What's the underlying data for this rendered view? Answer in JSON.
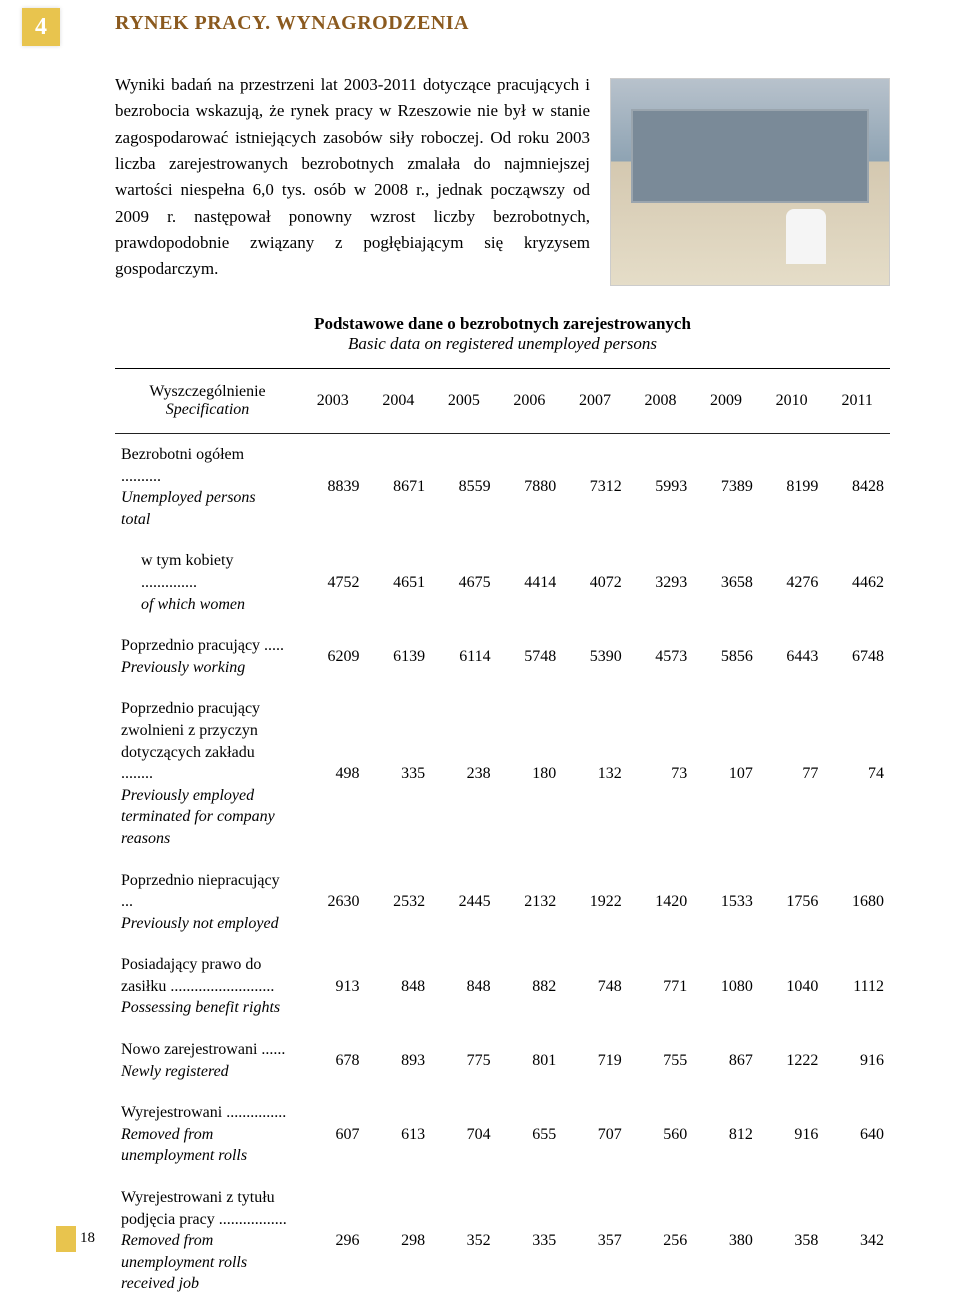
{
  "header": {
    "page_badge": "4",
    "title": "RYNEK PRACY. WYNAGRODZENIA"
  },
  "intro": {
    "text": "Wyniki badań na przestrzeni lat 2003-2011 dotyczące pracujących i bezrobocia wskazują, że rynek pracy w Rzeszowie nie był w stanie zagospodarować istniejących zasobów siły roboczej. Od roku 2003 liczba zarejestrowanych bezrobotnych zmalała do najmniejszej wartości niespełna 6,0 tys. osób w 2008 r., jednak począwszy od 2009 r. następował ponowny wzrost liczby bezrobotnych, prawdopodobnie związany z pogłębiającym się kryzysem gospodarczym."
  },
  "table": {
    "title": "Podstawowe dane o bezrobotnych zarejestrowanych",
    "subtitle": "Basic data on registered unemployed persons",
    "header_label": "Wyszczególnienie",
    "header_label_sub": "Specification",
    "years": [
      "2003",
      "2004",
      "2005",
      "2006",
      "2007",
      "2008",
      "2009",
      "2010",
      "2011"
    ],
    "rows": [
      {
        "label_main": "Bezrobotni ogółem ..........",
        "label_sub": "Unemployed persons total",
        "values": [
          "8839",
          "8671",
          "8559",
          "7880",
          "7312",
          "5993",
          "7389",
          "8199",
          "8428"
        ],
        "first": true
      },
      {
        "label_main": "w tym kobiety ..............",
        "label_sub": "of which women",
        "indent": true,
        "values": [
          "4752",
          "4651",
          "4675",
          "4414",
          "4072",
          "3293",
          "3658",
          "4276",
          "4462"
        ]
      },
      {
        "label_main": "Poprzednio pracujący .....",
        "label_sub": "Previously working",
        "values": [
          "6209",
          "6139",
          "6114",
          "5748",
          "5390",
          "4573",
          "5856",
          "6443",
          "6748"
        ]
      },
      {
        "label_main": "Poprzednio pracujący zwolnieni z przyczyn dotyczących zakładu ........",
        "label_sub": "Previously employed terminated for company reasons",
        "values": [
          "498",
          "335",
          "238",
          "180",
          "132",
          "73",
          "107",
          "77",
          "74"
        ]
      },
      {
        "label_main": "Poprzednio niepracujący ...",
        "label_sub": "Previously not employed",
        "values": [
          "2630",
          "2532",
          "2445",
          "2132",
          "1922",
          "1420",
          "1533",
          "1756",
          "1680"
        ]
      },
      {
        "label_main": "Posiadający prawo do zasiłku ..........................",
        "label_sub": "Possessing benefit rights",
        "values": [
          "913",
          "848",
          "848",
          "882",
          "748",
          "771",
          "1080",
          "1040",
          "1112"
        ]
      },
      {
        "label_main": "Nowo zarejestrowani ......",
        "label_sub": "Newly registered",
        "values": [
          "678",
          "893",
          "775",
          "801",
          "719",
          "755",
          "867",
          "1222",
          "916"
        ]
      },
      {
        "label_main": "Wyrejestrowani ...............",
        "label_sub": "Removed from unemployment rolls",
        "values": [
          "607",
          "613",
          "704",
          "655",
          "707",
          "560",
          "812",
          "916",
          "640"
        ]
      },
      {
        "label_main": "Wyrejestrowani z tytułu podjęcia pracy .................",
        "label_sub": "Removed from unemployment rolls received job",
        "values": [
          "296",
          "298",
          "352",
          "335",
          "357",
          "256",
          "380",
          "358",
          "342"
        ]
      }
    ]
  },
  "footer": {
    "page_num": "18"
  },
  "colors": {
    "accent": "#e8c44e",
    "title": "#8b5a1f"
  }
}
